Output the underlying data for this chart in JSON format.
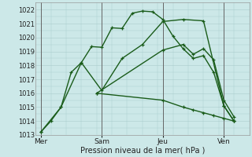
{
  "background_color": "#cce8e8",
  "grid_color": "#aacccc",
  "line_color": "#1a5c1a",
  "marker_color": "#1a5c1a",
  "xlabel": "Pression niveau de la mer( hPa )",
  "ylim": [
    1013,
    1022.5
  ],
  "yticks": [
    1013,
    1014,
    1015,
    1016,
    1017,
    1018,
    1019,
    1020,
    1021,
    1022
  ],
  "xtick_labels": [
    "Mer",
    "Sam",
    "Jeu",
    "Ven"
  ],
  "xtick_positions": [
    0,
    24,
    48,
    72
  ],
  "xlim": [
    -2,
    82
  ],
  "series": [
    {
      "x": [
        0,
        4,
        8,
        12,
        16,
        20,
        24,
        28,
        32,
        36,
        40,
        44,
        48,
        52,
        56,
        60,
        64,
        68,
        72,
        76
      ],
      "y": [
        1013.2,
        1014.0,
        1015.0,
        1017.5,
        1018.2,
        1019.35,
        1019.3,
        1020.7,
        1020.65,
        1021.75,
        1021.9,
        1021.85,
        1021.3,
        1020.1,
        1019.2,
        1018.5,
        1018.7,
        1017.5,
        1015.1,
        1014.0
      ]
    },
    {
      "x": [
        0,
        8,
        16,
        24,
        32,
        40,
        48,
        56,
        64,
        72,
        76
      ],
      "y": [
        1013.2,
        1015.0,
        1018.2,
        1016.2,
        1018.5,
        1019.5,
        1021.15,
        1021.3,
        1021.2,
        1015.1,
        1014.0
      ]
    },
    {
      "x": [
        22,
        48,
        56,
        60,
        64,
        68,
        72,
        76
      ],
      "y": [
        1016.0,
        1019.1,
        1019.5,
        1018.8,
        1019.2,
        1018.4,
        1015.5,
        1014.3
      ]
    },
    {
      "x": [
        22,
        48,
        56,
        60,
        64,
        68,
        72,
        76
      ],
      "y": [
        1016.0,
        1015.5,
        1015.0,
        1014.8,
        1014.6,
        1014.4,
        1014.2,
        1014.0
      ]
    }
  ],
  "vline_positions": [
    0,
    24,
    48,
    72
  ],
  "vline_color": "#666666"
}
